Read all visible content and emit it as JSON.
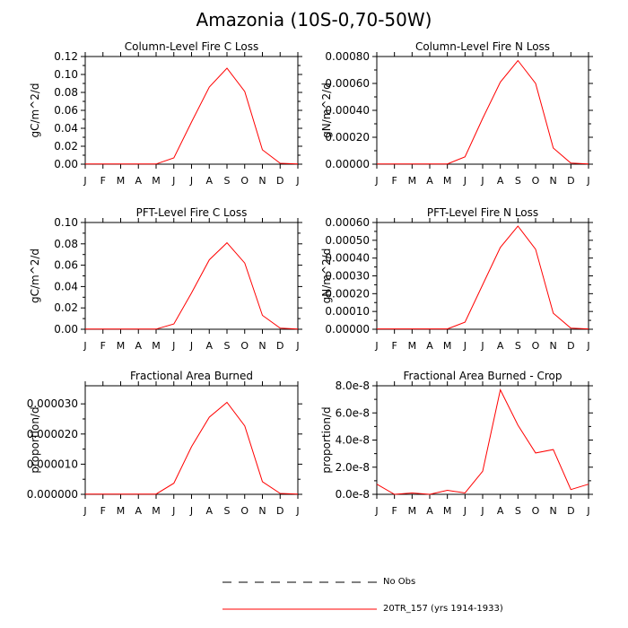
{
  "figure": {
    "title": "Amazonia (10S-0,70-50W)"
  },
  "chart_data": [
    {
      "type": "line",
      "title": "Column-Level Fire C Loss",
      "xlabel": "",
      "ylabel": "gC/m^2/d",
      "categories": [
        "J",
        "F",
        "M",
        "A",
        "M",
        "J",
        "J",
        "A",
        "S",
        "O",
        "N",
        "D",
        "J"
      ],
      "ylim": [
        0,
        0.12
      ],
      "yticks": [
        "0.00",
        "0.02",
        "0.04",
        "0.06",
        "0.08",
        "0.10",
        "0.12"
      ],
      "ytick_values": [
        0,
        0.02,
        0.04,
        0.06,
        0.08,
        0.1,
        0.12
      ],
      "series": [
        {
          "name": "20TR_157 (yrs 1914-1933)",
          "color": "#ff0000",
          "values": [
            0.0003,
            0.0003,
            0.0003,
            0.0002,
            0.0002,
            0.007,
            0.047,
            0.086,
            0.107,
            0.081,
            0.016,
            0.001,
            0.0003
          ]
        }
      ]
    },
    {
      "type": "line",
      "title": "Column-Level Fire N Loss",
      "xlabel": "",
      "ylabel": "gN/m^2/d",
      "categories": [
        "J",
        "F",
        "M",
        "A",
        "M",
        "J",
        "J",
        "A",
        "S",
        "O",
        "N",
        "D",
        "J"
      ],
      "ylim": [
        0,
        0.0008
      ],
      "yticks": [
        "0.00000",
        "0.00020",
        "0.00040",
        "0.00060",
        "0.00080"
      ],
      "ytick_values": [
        0,
        0.0002,
        0.0004,
        0.0006,
        0.0008
      ],
      "series": [
        {
          "name": "20TR_157 (yrs 1914-1933)",
          "color": "#ff0000",
          "values": [
            2e-06,
            2e-06,
            2e-06,
            2e-06,
            2e-06,
            5.5e-05,
            0.00034,
            0.00061,
            0.00077,
            0.0006,
            0.00012,
            8e-06,
            2e-06
          ]
        }
      ]
    },
    {
      "type": "line",
      "title": "PFT-Level Fire C Loss",
      "xlabel": "",
      "ylabel": "gC/m^2/d",
      "categories": [
        "J",
        "F",
        "M",
        "A",
        "M",
        "J",
        "J",
        "A",
        "S",
        "O",
        "N",
        "D",
        "J"
      ],
      "ylim": [
        0,
        0.1
      ],
      "yticks": [
        "0.00",
        "0.02",
        "0.04",
        "0.06",
        "0.08",
        "0.10"
      ],
      "ytick_values": [
        0,
        0.02,
        0.04,
        0.06,
        0.08,
        0.1
      ],
      "series": [
        {
          "name": "20TR_157 (yrs 1914-1933)",
          "color": "#ff0000",
          "values": [
            0.0002,
            0.0002,
            0.0002,
            0.0002,
            0.0002,
            0.005,
            0.034,
            0.065,
            0.081,
            0.062,
            0.013,
            0.001,
            0.0002
          ]
        }
      ]
    },
    {
      "type": "line",
      "title": "PFT-Level Fire N Loss",
      "xlabel": "",
      "ylabel": "gN/m^2/d",
      "categories": [
        "J",
        "F",
        "M",
        "A",
        "M",
        "J",
        "J",
        "A",
        "S",
        "O",
        "N",
        "D",
        "J"
      ],
      "ylim": [
        0,
        0.0006
      ],
      "yticks": [
        "0.00000",
        "0.00010",
        "0.00020",
        "0.00030",
        "0.00040",
        "0.00050",
        "0.00060"
      ],
      "ytick_values": [
        0,
        0.0001,
        0.0002,
        0.0003,
        0.0004,
        0.0005,
        0.0006
      ],
      "series": [
        {
          "name": "20TR_157 (yrs 1914-1933)",
          "color": "#ff0000",
          "values": [
            2e-06,
            2e-06,
            2e-06,
            2e-06,
            2e-06,
            4e-05,
            0.00025,
            0.00046,
            0.00058,
            0.00045,
            9e-05,
            6e-06,
            2e-06
          ]
        }
      ]
    },
    {
      "type": "line",
      "title": "Fractional Area Burned",
      "xlabel": "",
      "ylabel": "proportion/d",
      "categories": [
        "J",
        "F",
        "M",
        "A",
        "M",
        "J",
        "J",
        "A",
        "S",
        "O",
        "N",
        "D",
        "J"
      ],
      "ylim": [
        0,
        3.6e-05
      ],
      "yticks": [
        "0.000000",
        "0.000010",
        "0.000020",
        "0.000030"
      ],
      "ytick_values": [
        0,
        1e-05,
        2e-05,
        3e-05
      ],
      "series": [
        {
          "name": "20TR_157 (yrs 1914-1933)",
          "color": "#ff0000",
          "values": [
            1e-07,
            1e-07,
            1e-07,
            1e-07,
            1e-07,
            3.7e-06,
            1.58e-05,
            2.56e-05,
            3.05e-05,
            2.27e-05,
            4.2e-06,
            3e-07,
            1e-07
          ]
        }
      ]
    },
    {
      "type": "line",
      "title": "Fractional Area Burned - Crop",
      "xlabel": "",
      "ylabel": "proportion/d",
      "categories": [
        "J",
        "F",
        "M",
        "A",
        "M",
        "J",
        "J",
        "A",
        "S",
        "O",
        "N",
        "D",
        "J"
      ],
      "ylim": [
        0,
        8e-08
      ],
      "yticks": [
        "0.0e-8",
        "2.0e-8",
        "4.0e-8",
        "6.0e-8",
        "8.0e-8"
      ],
      "ytick_values": [
        0,
        2e-08,
        4e-08,
        6e-08,
        8e-08
      ],
      "series": [
        {
          "name": "20TR_157 (yrs 1914-1933)",
          "color": "#ff0000",
          "values": [
            7.5e-09,
            0.0,
            1e-09,
            0.0,
            3e-09,
            1e-09,
            1.7e-08,
            7.7e-08,
            5.1e-08,
            3.05e-08,
            3.3e-08,
            3.5e-09,
            7.5e-09
          ]
        }
      ]
    }
  ],
  "legend": {
    "items": [
      {
        "label": "No Obs",
        "style": "dashed",
        "color": "#000000"
      },
      {
        "label": "20TR_157 (yrs 1914-1933)",
        "style": "solid",
        "color": "#ff0000"
      }
    ]
  }
}
